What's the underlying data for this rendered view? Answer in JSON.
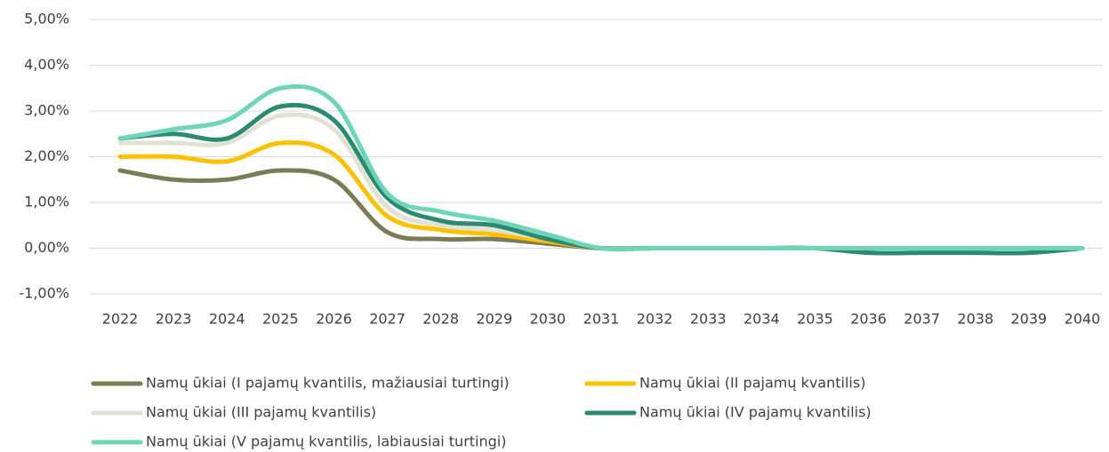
{
  "chart_data": {
    "type": "line",
    "categories": [
      "2022",
      "2023",
      "2024",
      "2025",
      "2026",
      "2027",
      "2028",
      "2029",
      "2030",
      "2031",
      "2032",
      "2033",
      "2034",
      "2035",
      "2036",
      "2037",
      "2038",
      "2039",
      "2040"
    ],
    "ylim": [
      -1,
      5
    ],
    "yticks": [
      {
        "value": -1,
        "label": "-1,00%"
      },
      {
        "value": 0,
        "label": "0,00%"
      },
      {
        "value": 1,
        "label": "1,00%"
      },
      {
        "value": 2,
        "label": "2,00%"
      },
      {
        "value": 3,
        "label": "3,00%"
      },
      {
        "value": 4,
        "label": "4,00%"
      },
      {
        "value": 5,
        "label": "5,00%"
      }
    ],
    "grid": true,
    "legend": "bottom",
    "series": [
      {
        "name": "Namų ūkiai (I pajamų kvantilis, mažiausiai turtingi)",
        "color": "#7b7b55",
        "values": [
          1.7,
          1.5,
          1.5,
          1.7,
          1.5,
          0.35,
          0.2,
          0.2,
          0.1,
          0,
          0,
          0,
          0,
          0,
          0,
          0,
          0,
          0,
          0
        ]
      },
      {
        "name": "Namų ūkiai (II pajamų kvantilis)",
        "color": "#ffc000",
        "values": [
          2.0,
          2.0,
          1.9,
          2.3,
          2.05,
          0.7,
          0.4,
          0.3,
          0.15,
          0,
          0,
          0,
          0,
          0,
          0,
          0,
          0,
          0,
          0
        ]
      },
      {
        "name": "Namų ūkiai (III pajamų kvantilis)",
        "color": "#e2e2d4",
        "values": [
          2.3,
          2.3,
          2.3,
          2.9,
          2.6,
          0.9,
          0.5,
          0.4,
          0.2,
          0,
          0,
          0,
          0,
          0,
          0,
          0,
          0,
          0,
          0
        ]
      },
      {
        "name": "Namų ūkiai (IV pajamų kvantilis)",
        "color": "#2b8a70",
        "values": [
          2.4,
          2.5,
          2.4,
          3.1,
          2.8,
          1.1,
          0.6,
          0.5,
          0.2,
          0,
          0,
          0,
          0,
          0,
          -0.1,
          -0.1,
          -0.1,
          -0.1,
          0
        ]
      },
      {
        "name": "Namų ūkiai (V pajamų kvantilis, labiausiai turtingi)",
        "color": "#6ed5b9",
        "values": [
          2.4,
          2.6,
          2.8,
          3.5,
          3.2,
          1.2,
          0.8,
          0.6,
          0.3,
          0,
          0,
          0,
          0,
          0,
          0,
          0,
          0,
          0,
          0
        ]
      }
    ]
  }
}
